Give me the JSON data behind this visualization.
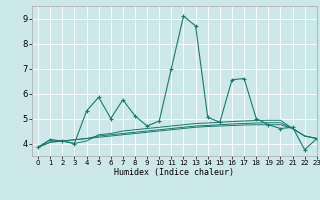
{
  "title": "",
  "xlabel": "Humidex (Indice chaleur)",
  "xlim": [
    -0.5,
    23
  ],
  "ylim": [
    3.5,
    9.5
  ],
  "yticks": [
    4,
    5,
    6,
    7,
    8,
    9
  ],
  "xticks": [
    0,
    1,
    2,
    3,
    4,
    5,
    6,
    7,
    8,
    9,
    10,
    11,
    12,
    13,
    14,
    15,
    16,
    17,
    18,
    19,
    20,
    21,
    22,
    23
  ],
  "bg_color": "#cce8e8",
  "grid_color": "#ffffff",
  "line_color": "#1a7a6e",
  "series": [
    [
      3.85,
      4.15,
      4.1,
      4.0,
      5.3,
      5.85,
      5.0,
      5.75,
      5.1,
      4.7,
      4.9,
      7.0,
      9.1,
      8.7,
      5.05,
      4.85,
      6.55,
      6.6,
      5.0,
      4.75,
      4.6,
      4.65,
      3.75,
      4.2
    ],
    [
      3.85,
      4.15,
      4.1,
      4.0,
      4.1,
      4.35,
      4.4,
      4.5,
      4.55,
      4.6,
      4.65,
      4.7,
      4.75,
      4.8,
      4.82,
      4.85,
      4.88,
      4.9,
      4.92,
      4.93,
      4.93,
      4.6,
      4.3,
      4.2
    ],
    [
      3.85,
      4.05,
      4.1,
      4.15,
      4.2,
      4.3,
      4.35,
      4.4,
      4.45,
      4.5,
      4.55,
      4.6,
      4.65,
      4.7,
      4.72,
      4.75,
      4.78,
      4.8,
      4.82,
      4.83,
      4.83,
      4.6,
      4.3,
      4.2
    ],
    [
      3.85,
      4.05,
      4.1,
      4.15,
      4.2,
      4.25,
      4.3,
      4.35,
      4.4,
      4.45,
      4.5,
      4.55,
      4.6,
      4.65,
      4.68,
      4.7,
      4.72,
      4.74,
      4.75,
      4.75,
      4.75,
      4.6,
      4.3,
      4.2
    ]
  ]
}
